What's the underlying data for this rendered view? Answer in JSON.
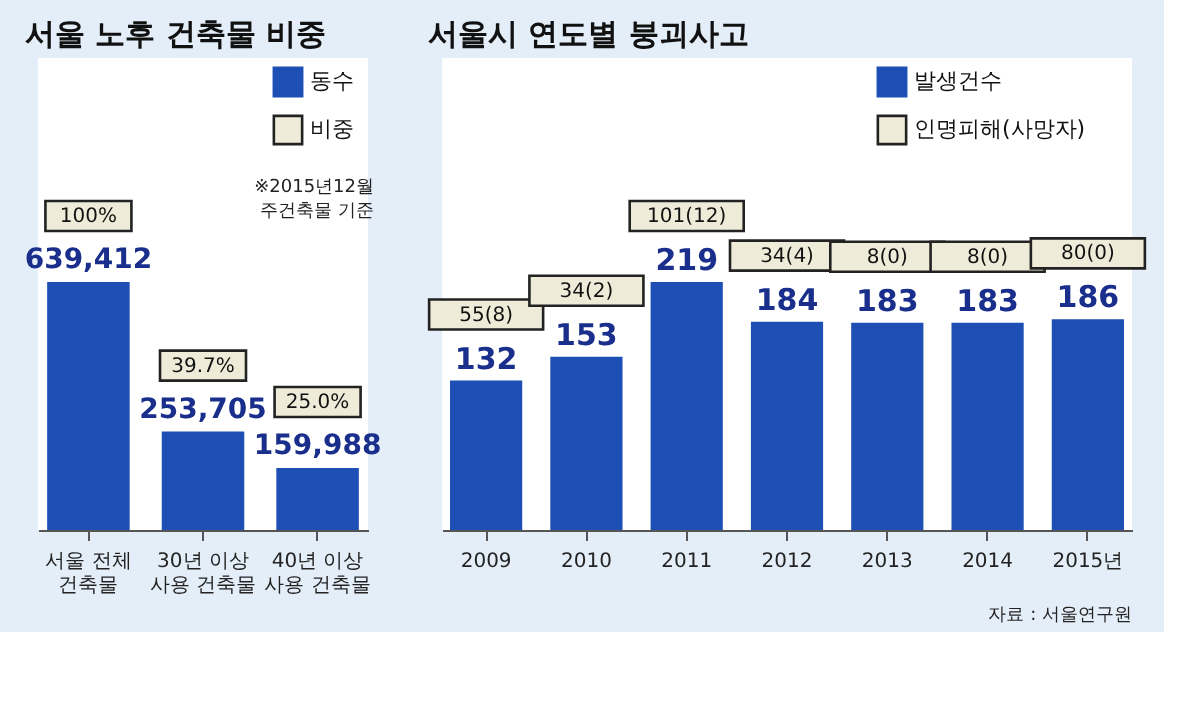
{
  "chart_data": [
    {
      "type": "bar",
      "title": "서울 노후 건축물 비중",
      "categories": [
        "서울 전체\n건축물",
        "30년 이상\n사용 건축물",
        "40년 이상\n사용 건축물"
      ],
      "series": [
        {
          "name": "동수",
          "color": "#1d4fb4",
          "values": [
            639412,
            253705,
            159988
          ],
          "value_labels": [
            "639,412",
            "253,705",
            "159,988"
          ]
        },
        {
          "name": "비중",
          "color": "#eeecd9",
          "values": [
            null,
            null,
            null
          ],
          "value_labels": [
            "100%",
            "39.7%",
            "25.0%"
          ]
        }
      ],
      "legend": "top right",
      "grid": false,
      "tick_labels": "x",
      "annotations": [
        "※2015년12월\n주건축물 기준"
      ]
    },
    {
      "type": "bar",
      "title": "서울시 연도별 붕괴사고",
      "categories": [
        "2009",
        "2010",
        "2011",
        "2012",
        "2013",
        "2014",
        "2015년"
      ],
      "series": [
        {
          "name": "발생건수",
          "color": "#1d4fb4",
          "values": [
            132,
            153,
            219,
            184,
            183,
            183,
            186
          ]
        },
        {
          "name": "인명피해(사망자)",
          "color": "#eeecd9",
          "values": [
            null,
            null,
            null,
            null,
            null,
            null,
            null
          ],
          "value_labels": [
            "55(8)",
            "34(2)",
            "101(12)",
            "34(4)",
            "8(0)",
            "8(0)",
            "80(0)"
          ]
        }
      ],
      "data_labels": true,
      "legend": "top right",
      "grid": false,
      "tick_labels": "x",
      "annotations": [
        "자료 : 서울연구원"
      ]
    }
  ]
}
